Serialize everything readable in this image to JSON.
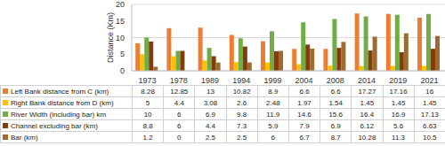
{
  "chart_data": {
    "type": "bar",
    "y_label": "Distance (Km)",
    "categories": [
      "1973",
      "1978",
      "1989",
      "1994",
      "1999",
      "2004",
      "2008",
      "2014",
      "2019",
      "2021"
    ],
    "series": [
      {
        "name": "Left Bank distance from C (km)",
        "color": "#ed7d31",
        "values": [
          8.28,
          12.85,
          13,
          10.82,
          8.9,
          6.6,
          6.6,
          17.27,
          17.16,
          16
        ]
      },
      {
        "name": "Right Bank distance from D (km)",
        "color": "#ffc000",
        "values": [
          5,
          4.4,
          3.08,
          2.6,
          2.48,
          1.97,
          1.54,
          1.45,
          1.45,
          1.45
        ]
      },
      {
        "name": "River Width (including bar) km",
        "color": "#70ad47",
        "values": [
          10,
          6,
          6.9,
          9.8,
          11.9,
          14.6,
          15.6,
          16.4,
          16.9,
          17.13
        ]
      },
      {
        "name": "Channel excluding bar (km)",
        "color": "#843c0c",
        "values": [
          8.8,
          6,
          4.4,
          7.3,
          5.9,
          7.9,
          6.9,
          6.12,
          5.6,
          6.63
        ]
      },
      {
        "name": "Bar (km)",
        "color": "#9e6b2e",
        "values": [
          1.2,
          0,
          2.5,
          2.5,
          6,
          6.7,
          8.7,
          10.28,
          11.3,
          10.5
        ]
      }
    ],
    "ylim": [
      0,
      20
    ],
    "yticks": [
      0,
      5,
      10,
      15,
      20
    ],
    "grid": true
  }
}
